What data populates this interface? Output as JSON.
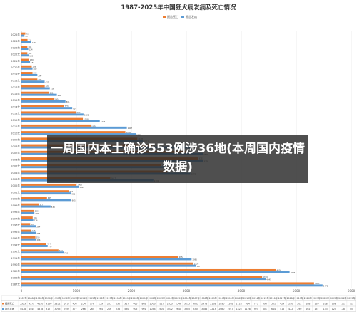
{
  "overlay_text": "一周国内本土确诊553例涉36地(本周国内疫情数据)",
  "chart_data": {
    "type": "bar",
    "orientation": "horizontal",
    "title": "1987-2025年中国狂犬病发病及死亡情况",
    "legend_position": "top-right",
    "series": [
      {
        "name": "报告死亡",
        "color": "#ed7d31"
      },
      {
        "name": "报告发病",
        "color": "#5b9bd5"
      }
    ],
    "years": [
      "1987",
      "1988",
      "1989",
      "1990",
      "1991",
      "1992",
      "1993",
      "1994",
      "1995",
      "1996",
      "1997",
      "1998",
      "1999",
      "2000",
      "2001",
      "2002",
      "2003",
      "2004",
      "2005",
      "2006",
      "2007",
      "2008",
      "2009",
      "2010",
      "2011",
      "2012",
      "2013",
      "2014",
      "2015",
      "2016",
      "2017",
      "2018",
      "2019",
      "2020",
      "2021",
      "2022",
      "2023",
      "2024",
      "2025"
    ],
    "deaths": [
      5323,
      4379,
      4630,
      3126,
      2852,
      673,
      454,
      254,
      176,
      159,
      205,
      230,
      317,
      465,
      862,
      1003,
      1617,
      2653,
      2546,
      3215,
      3002,
      2378,
      2108,
      1890,
      1262,
      1118,
      994,
      773,
      590,
      501,
      424,
      290,
      202,
      188,
      139,
      108,
      108,
      111,
      71
    ],
    "cases": [
      5478,
      4445,
      4878,
      3177,
      3095,
      769,
      477,
      266,
      265,
      264,
      216,
      236,
      530,
      905,
      901,
      1044,
      2400,
      3072,
      2640,
      3305,
      3300,
      3086,
      2213,
      2080,
      1917,
      1425,
      1128,
      924,
      801,
      644,
      516,
      422,
      290,
      202,
      157,
      133,
      124,
      178,
      55
    ],
    "xlim": [
      0,
      6000
    ],
    "xticks": [
      "0",
      "1000",
      "2000",
      "3000",
      "4000",
      "5000",
      "6000"
    ],
    "table_row_labels": [
      "报告死亡",
      "报告发病"
    ],
    "grid": true
  }
}
